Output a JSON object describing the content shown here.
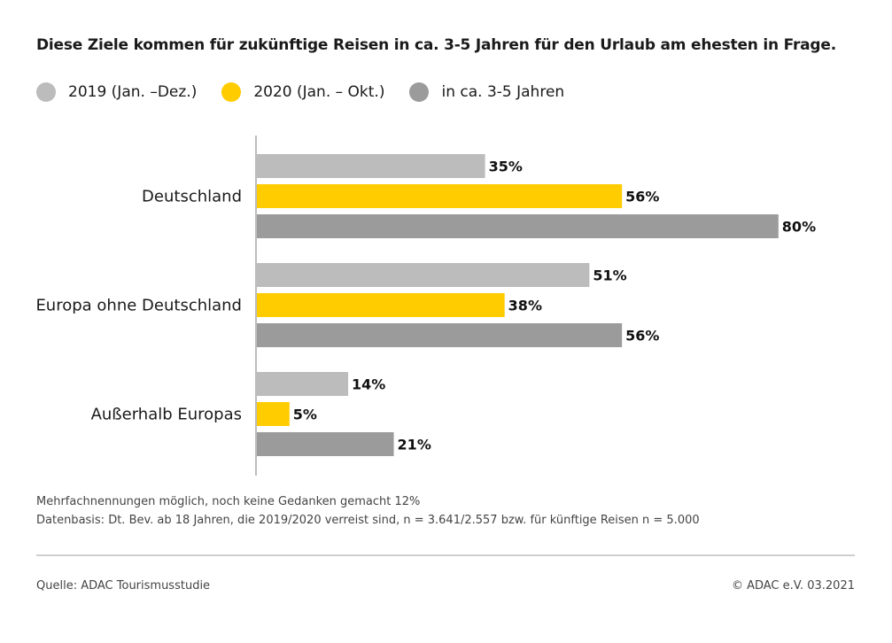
{
  "title": "Diese Ziele kommen für zukünftige Reisen in ca. 3-5 Jahren für den Urlaub am ehesten in Frage.",
  "legend": [
    {
      "label": "2019 (Jan. –Dez.)",
      "color": "#bcbcbc"
    },
    {
      "label": "2020 (Jan. – Okt.)",
      "color": "#ffcc00"
    },
    {
      "label": "in ca. 3-5 Jahren",
      "color": "#9b9b9b"
    }
  ],
  "chart_data": {
    "type": "bar",
    "orientation": "horizontal",
    "categories": [
      "Deutschland",
      "Europa ohne Deutschland",
      "Außerhalb Europas"
    ],
    "series": [
      {
        "name": "2019 (Jan. –Dez.)",
        "color": "#bcbcbc",
        "values": [
          35,
          51,
          14
        ]
      },
      {
        "name": "2020 (Jan. – Okt.)",
        "color": "#ffcc00",
        "values": [
          56,
          38,
          5
        ]
      },
      {
        "name": "in ca. 3-5 Jahren",
        "color": "#9b9b9b",
        "values": [
          80,
          56,
          21
        ]
      }
    ],
    "value_suffix": "%",
    "xlim": [
      0,
      100
    ],
    "grid": false,
    "legend_position": "top-left"
  },
  "notes": [
    "Mehrfachnennungen möglich, noch keine Gedanken gemacht 12%",
    "Datenbasis: Dt. Bev. ab 18 Jahren, die 2019/2020 verreist sind, n = 3.641/2.557 bzw. für künftige Reisen n = 5.000"
  ],
  "source": "Quelle: ADAC Tourismusstudie",
  "copyright": "© ADAC e.V. 03.2021"
}
